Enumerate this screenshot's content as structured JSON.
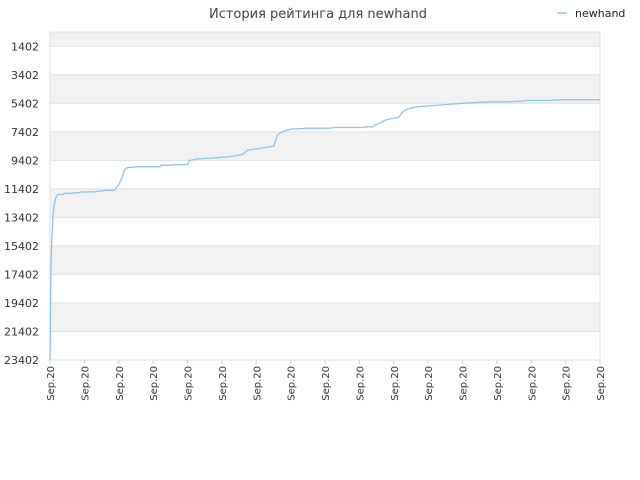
{
  "chart_data": {
    "type": "line",
    "title": "История рейтинга для newhand",
    "xlabel": "",
    "ylabel": "",
    "y_reversed": true,
    "ylim": [
      23402,
      402
    ],
    "y_ticks": [
      1402,
      3402,
      5402,
      7402,
      9402,
      11402,
      13402,
      15402,
      17402,
      19402,
      21402,
      23402
    ],
    "x_tick_labels": [
      "Sep.20",
      "Sep.20",
      "Sep.20",
      "Sep.20",
      "Sep.20",
      "Sep.20",
      "Sep.20",
      "Sep.20",
      "Sep.20",
      "Sep.20",
      "Sep.20",
      "Sep.20",
      "Sep.20",
      "Sep.20",
      "Sep.20",
      "Sep.20",
      "Sep.20"
    ],
    "grid": true,
    "legend_position": "top-right",
    "colors": {
      "series": "#8cc4f0",
      "band": "#f2f2f2",
      "grid": "#e0e0e0"
    },
    "series": [
      {
        "name": "newhand",
        "x": [
          0,
          0.4,
          0.6,
          1.0,
          1.6,
          2.4,
          3.2,
          4.0,
          5.0,
          6.0,
          7.0,
          8.0,
          9.0,
          10.0,
          11.0,
          12.0,
          15.0,
          15.0,
          20.0,
          25.0,
          26.0,
          30.0,
          32.0,
          33.0,
          35.0,
          40.0,
          50.0,
          60.0,
          70.0,
          75.0,
          78.0,
          80.0,
          82.0,
          85.0,
          88.0,
          90.0,
          95.0,
          100.0,
          120.0,
          121.0,
          125.0,
          130.0,
          135.0,
          140.0,
          145.0,
          150.0,
          152.0,
          155.0,
          160.0,
          175.0,
          195.0,
          200.0,
          205.0,
          210.0,
          215.0,
          225.0,
          244.0,
          246.0,
          248.0,
          250.0,
          252.0,
          255.0,
          258.0,
          260.0,
          265.0,
          270.0,
          280.0,
          290.0,
          300.0,
          305.0,
          310.0,
          320.0,
          330.0,
          335.0,
          340.0,
          345.0,
          350.0,
          352.0,
          355.0,
          360.0,
          365.0,
          370.0,
          380.0,
          385.0,
          390.0,
          400.0,
          410.0,
          420.0,
          450.0,
          480.0,
          500.0,
          515.0,
          518.0,
          520.0,
          525.0,
          535.0,
          545.0,
          560.0,
          580.0,
          600.0
        ],
        "y": [
          23402,
          21402,
          19402,
          17402,
          15402,
          14400,
          13402,
          12800,
          12400,
          12100,
          11950,
          11850,
          11800,
          11800,
          11800,
          11800,
          11800,
          11720,
          11720,
          11720,
          11680,
          11680,
          11680,
          11620,
          11620,
          11620,
          11600,
          11500,
          11500,
          11100,
          10700,
          10300,
          10000,
          9900,
          9900,
          9900,
          9850,
          9850,
          9850,
          9750,
          9750,
          9750,
          9700,
          9700,
          9700,
          9700,
          9420,
          9380,
          9300,
          9250,
          9150,
          9100,
          9050,
          9000,
          8700,
          8600,
          8400,
          8050,
          7650,
          7550,
          7450,
          7350,
          7300,
          7250,
          7200,
          7200,
          7150,
          7150,
          7150,
          7150,
          7100,
          7100,
          7100,
          7100,
          7100,
          7050,
          7050,
          7050,
          6900,
          6800,
          6600,
          6500,
          6400,
          6000,
          5800,
          5650,
          5600,
          5550,
          5400,
          5300,
          5300,
          5250,
          5250,
          5200,
          5200,
          5200,
          5200,
          5150,
          5150,
          5150
        ]
      }
    ]
  }
}
